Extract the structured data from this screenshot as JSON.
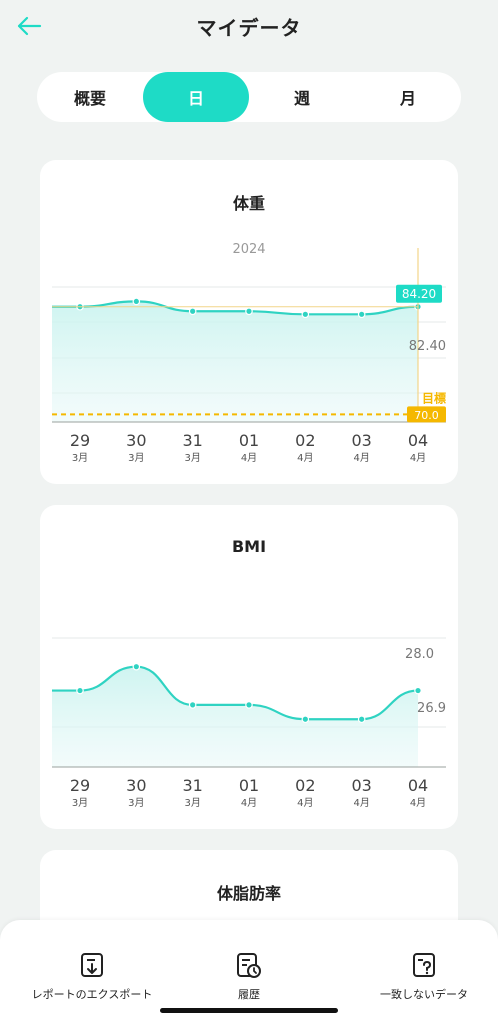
{
  "header": {
    "title": "マイデータ",
    "back_icon": "back-arrow-icon"
  },
  "tabs": [
    {
      "label": "概要",
      "active": false
    },
    {
      "label": "日",
      "active": true
    },
    {
      "label": "週",
      "active": false
    },
    {
      "label": "月",
      "active": false
    }
  ],
  "colors": {
    "accent": "#1edbc6",
    "goal": "#f5b800",
    "line": "#2fd3c2"
  },
  "chart_data": [
    {
      "type": "line",
      "title": "体重",
      "year_label": "2024",
      "categories": [
        "29",
        "30",
        "31",
        "01",
        "02",
        "03",
        "04"
      ],
      "month_labels": [
        "3月",
        "3月",
        "3月",
        "4月",
        "4月",
        "4月",
        "4月"
      ],
      "series": [
        {
          "values": [
            84.2,
            84.9,
            83.6,
            83.6,
            83.2,
            83.2,
            84.2
          ]
        }
      ],
      "ylim": [
        69,
        86.8
      ],
      "selected_value_label": "84.20",
      "reference_value": 82.4,
      "reference_label": "82.40",
      "goal_value": 70.0,
      "goal_title": "目標",
      "goal_label": "70.0",
      "grid": true
    },
    {
      "type": "line",
      "title": "BMI",
      "categories": [
        "29",
        "30",
        "31",
        "01",
        "02",
        "03",
        "04"
      ],
      "month_labels": [
        "3月",
        "3月",
        "3月",
        "4月",
        "4月",
        "4月",
        "4月"
      ],
      "series": [
        {
          "values": [
            27.2,
            27.7,
            26.9,
            26.9,
            26.6,
            26.6,
            27.2
          ]
        }
      ],
      "ylim": [
        25.6,
        28.3
      ],
      "tick_labels": [
        "28.0",
        "26.9"
      ],
      "tick_values": [
        28.0,
        26.9
      ],
      "grid": true
    }
  ],
  "third_card": {
    "title": "体脂肪率"
  },
  "bottom_actions": [
    {
      "label": "レポートのエクスポート",
      "icon": "export-report-icon"
    },
    {
      "label": "履歴",
      "icon": "history-icon"
    },
    {
      "label": "一致しないデータ",
      "icon": "unmatched-data-icon"
    }
  ]
}
